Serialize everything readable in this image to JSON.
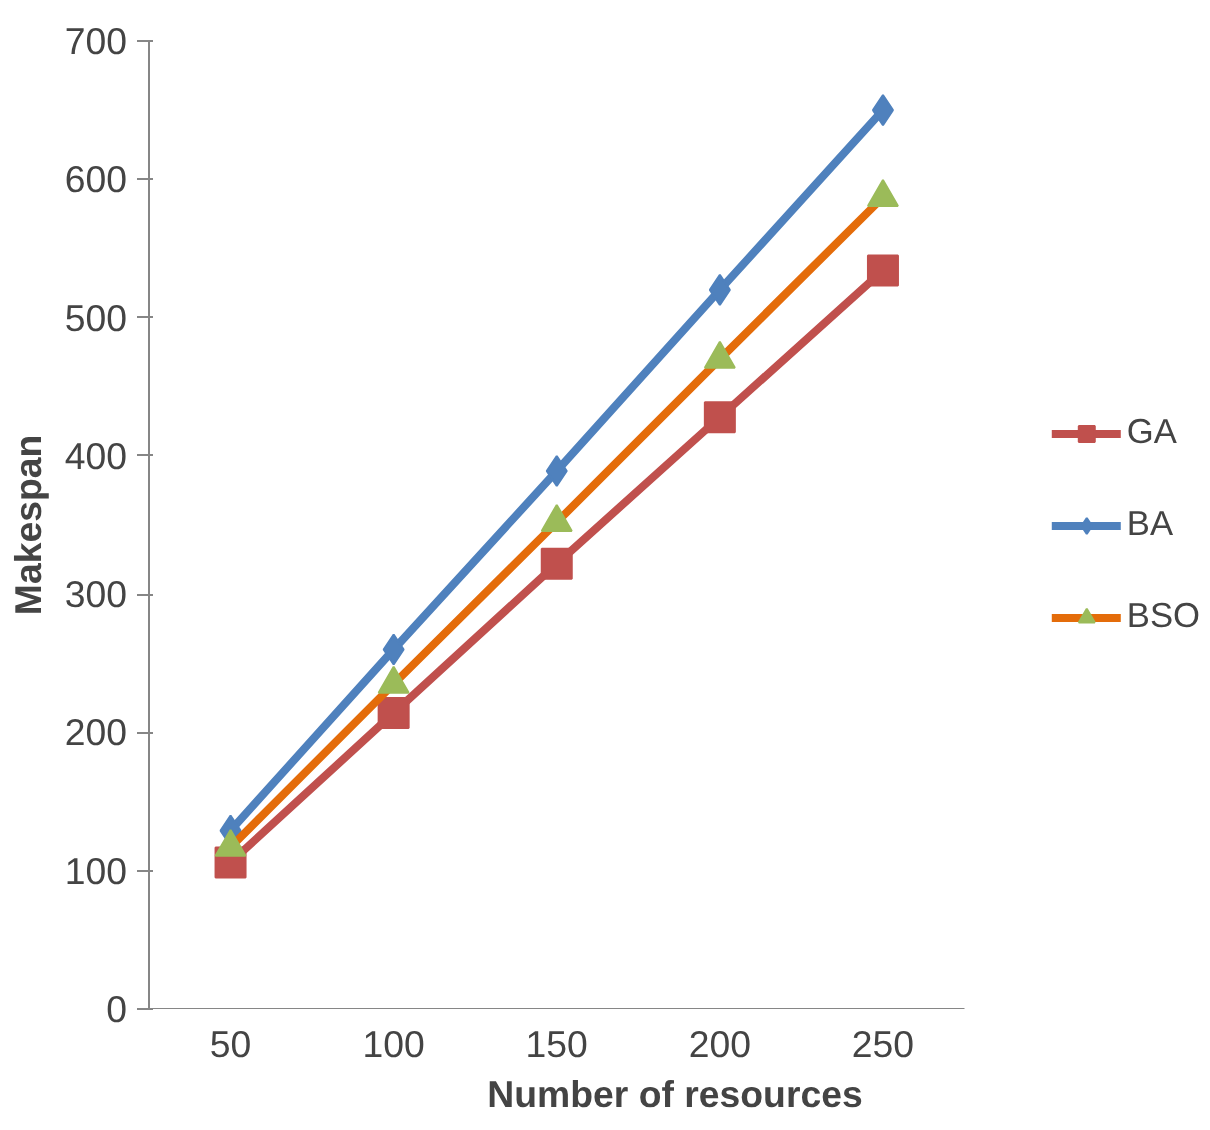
{
  "chart_data": {
    "type": "line",
    "xlabel": "Number of resources",
    "ylabel": "Makespan",
    "categories": [
      "50",
      "100",
      "150",
      "200",
      "250"
    ],
    "ylim": [
      0,
      700
    ],
    "yticks": [
      0,
      100,
      200,
      300,
      400,
      500,
      600,
      700
    ],
    "legend": "right",
    "series": [
      {
        "name": "GA",
        "color": "#c0504d",
        "marker": "square",
        "values": [
          106,
          214,
          322,
          428,
          534
        ]
      },
      {
        "name": "BA",
        "color": "#4f81bd",
        "marker": "diamond",
        "values": [
          129,
          260,
          389,
          520,
          650
        ]
      },
      {
        "name": "BSO",
        "color": "#e46c0a",
        "marker": "triangle",
        "colors": [
          "#9bbb59",
          "#9bbb59",
          "#9bbb59",
          "#9bbb59",
          "#9bbb59"
        ],
        "values": [
          117,
          235,
          352,
          470,
          587
        ]
      }
    ]
  }
}
